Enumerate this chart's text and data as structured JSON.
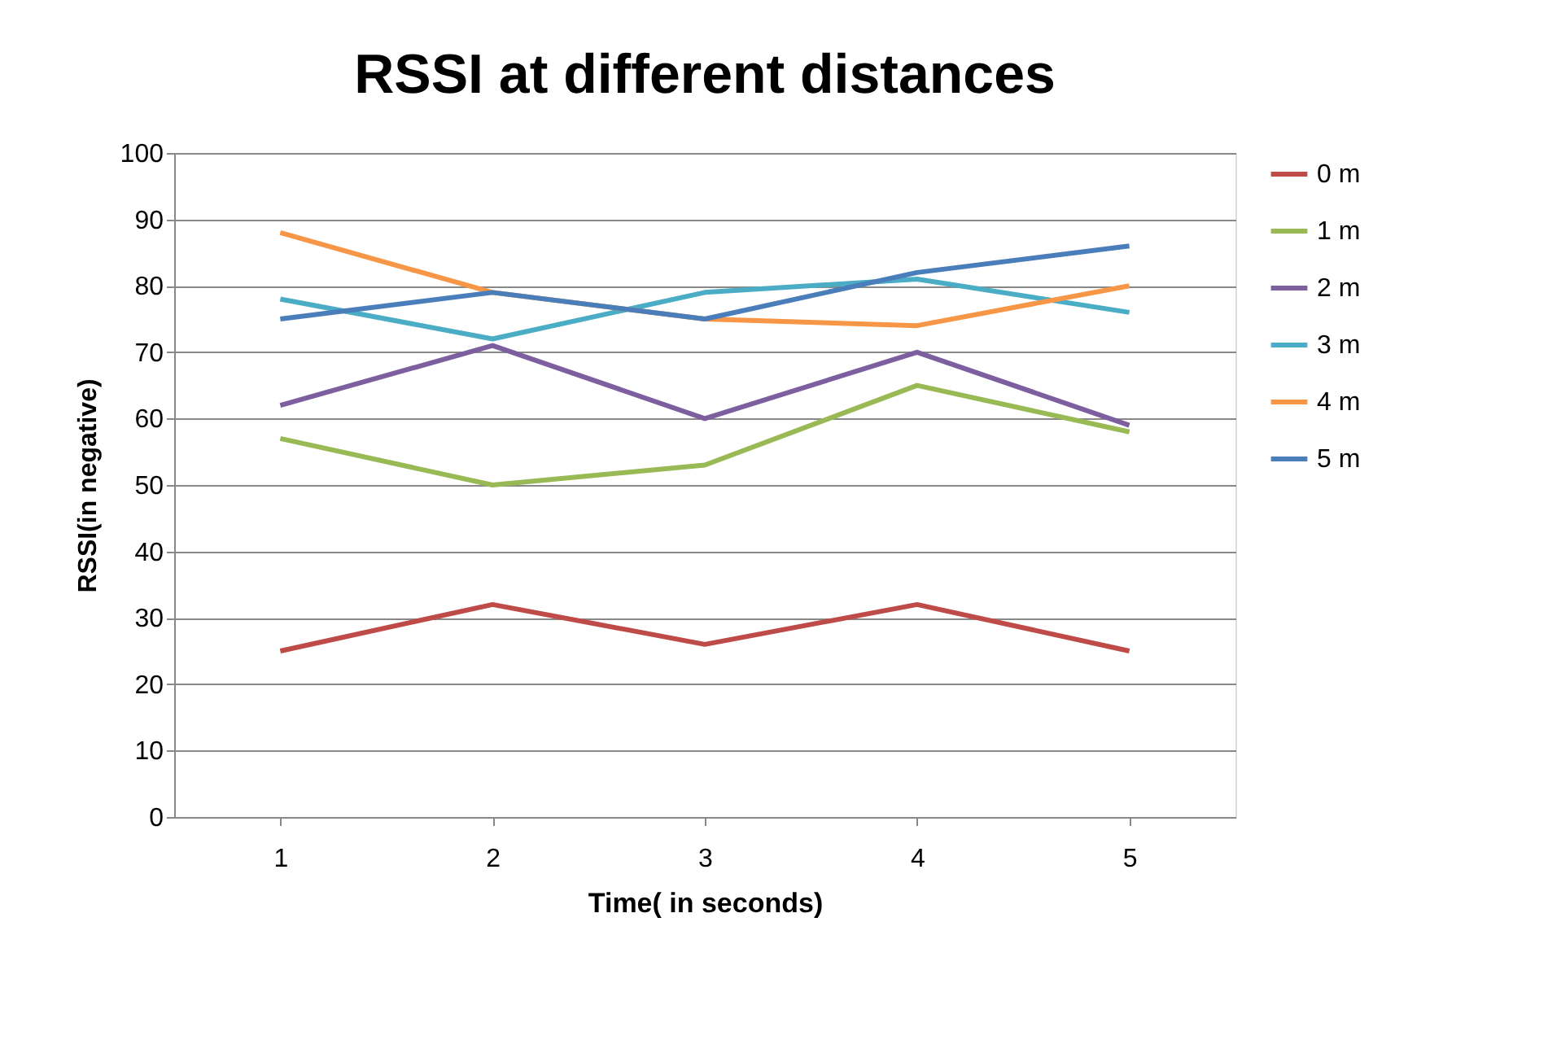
{
  "chart_data": {
    "type": "line",
    "title": "RSSI at different distances",
    "xlabel": "Time( in seconds)",
    "ylabel": "RSSI(in negative)",
    "categories": [
      "1",
      "2",
      "3",
      "4",
      "5"
    ],
    "series": [
      {
        "name": "0 m",
        "color": "#be4b48",
        "values": [
          25,
          32,
          26,
          32,
          25
        ]
      },
      {
        "name": "1 m",
        "color": "#98b954",
        "values": [
          57,
          50,
          53,
          65,
          58
        ]
      },
      {
        "name": "2 m",
        "color": "#7d5fa0",
        "values": [
          62,
          71,
          60,
          70,
          59
        ]
      },
      {
        "name": "3 m",
        "color": "#4bacc6",
        "values": [
          78,
          72,
          79,
          81,
          76
        ]
      },
      {
        "name": "4 m",
        "color": "#f79646",
        "values": [
          88,
          79,
          75,
          74,
          80
        ]
      },
      {
        "name": "5 m",
        "color": "#4a7ebb",
        "values": [
          75,
          79,
          75,
          82,
          86
        ]
      }
    ],
    "ylim": [
      0,
      100
    ],
    "yticks": [
      0,
      10,
      20,
      30,
      40,
      50,
      60,
      70,
      80,
      90,
      100
    ],
    "grid": "y",
    "legend": "right",
    "marker": "none",
    "line_style": "solid"
  }
}
